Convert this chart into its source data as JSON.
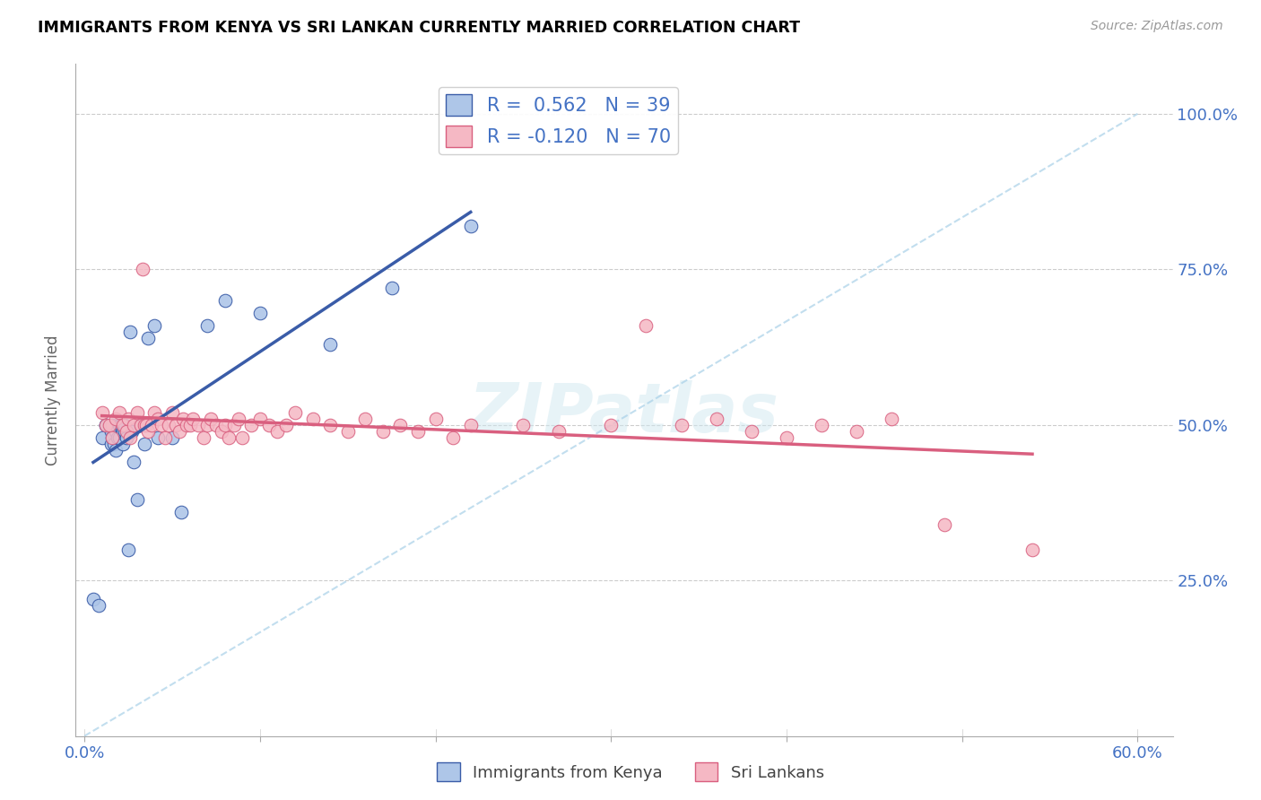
{
  "title": "IMMIGRANTS FROM KENYA VS SRI LANKAN CURRENTLY MARRIED CORRELATION CHART",
  "source": "Source: ZipAtlas.com",
  "ylabel": "Currently Married",
  "color_kenya": "#aec6e8",
  "color_srilanka": "#f5b8c4",
  "color_kenya_line": "#3a5ca8",
  "color_srilanka_line": "#d95f7f",
  "color_diagonal_dashed": "#a8d0e8",
  "watermark": "ZIPatlas",
  "kenya_x": [
    0.005,
    0.008,
    0.01,
    0.012,
    0.012,
    0.015,
    0.015,
    0.016,
    0.016,
    0.017,
    0.018,
    0.018,
    0.019,
    0.02,
    0.02,
    0.021,
    0.022,
    0.022,
    0.023,
    0.023,
    0.024,
    0.025,
    0.026,
    0.027,
    0.028,
    0.03,
    0.032,
    0.034,
    0.036,
    0.04,
    0.042,
    0.05,
    0.055,
    0.07,
    0.08,
    0.1,
    0.14,
    0.175,
    0.22
  ],
  "kenya_y": [
    0.22,
    0.21,
    0.48,
    0.5,
    0.5,
    0.47,
    0.49,
    0.48,
    0.5,
    0.47,
    0.46,
    0.49,
    0.48,
    0.5,
    0.48,
    0.5,
    0.49,
    0.47,
    0.49,
    0.5,
    0.48,
    0.3,
    0.65,
    0.49,
    0.44,
    0.38,
    0.5,
    0.47,
    0.64,
    0.66,
    0.48,
    0.48,
    0.36,
    0.66,
    0.7,
    0.68,
    0.63,
    0.72,
    0.82
  ],
  "srilanka_x": [
    0.01,
    0.012,
    0.014,
    0.016,
    0.018,
    0.02,
    0.022,
    0.024,
    0.025,
    0.026,
    0.028,
    0.03,
    0.032,
    0.033,
    0.034,
    0.035,
    0.036,
    0.038,
    0.04,
    0.042,
    0.044,
    0.046,
    0.048,
    0.05,
    0.052,
    0.054,
    0.056,
    0.058,
    0.06,
    0.062,
    0.065,
    0.068,
    0.07,
    0.072,
    0.075,
    0.078,
    0.08,
    0.082,
    0.085,
    0.088,
    0.09,
    0.095,
    0.1,
    0.105,
    0.11,
    0.115,
    0.12,
    0.13,
    0.14,
    0.15,
    0.16,
    0.17,
    0.18,
    0.19,
    0.2,
    0.21,
    0.22,
    0.25,
    0.27,
    0.3,
    0.32,
    0.34,
    0.36,
    0.38,
    0.4,
    0.42,
    0.44,
    0.46,
    0.49,
    0.54
  ],
  "srilanka_y": [
    0.52,
    0.5,
    0.5,
    0.48,
    0.51,
    0.52,
    0.5,
    0.49,
    0.51,
    0.48,
    0.5,
    0.52,
    0.5,
    0.75,
    0.5,
    0.5,
    0.49,
    0.5,
    0.52,
    0.51,
    0.5,
    0.48,
    0.5,
    0.52,
    0.5,
    0.49,
    0.51,
    0.5,
    0.5,
    0.51,
    0.5,
    0.48,
    0.5,
    0.51,
    0.5,
    0.49,
    0.5,
    0.48,
    0.5,
    0.51,
    0.48,
    0.5,
    0.51,
    0.5,
    0.49,
    0.5,
    0.52,
    0.51,
    0.5,
    0.49,
    0.51,
    0.49,
    0.5,
    0.49,
    0.51,
    0.48,
    0.5,
    0.5,
    0.49,
    0.5,
    0.66,
    0.5,
    0.51,
    0.49,
    0.48,
    0.5,
    0.49,
    0.51,
    0.34,
    0.3
  ],
  "xlim": [
    -0.005,
    0.62
  ],
  "ylim": [
    0.0,
    1.08
  ],
  "x_ticks": [
    0.0,
    0.1,
    0.2,
    0.3,
    0.4,
    0.5,
    0.6
  ],
  "x_tick_labels_show": [
    "0.0%",
    "",
    "",
    "",
    "",
    "",
    "60.0%"
  ],
  "y_ticks": [
    0.25,
    0.5,
    0.75,
    1.0
  ],
  "y_tick_labels_right": [
    "25.0%",
    "50.0%",
    "75.0%",
    "100.0%"
  ]
}
